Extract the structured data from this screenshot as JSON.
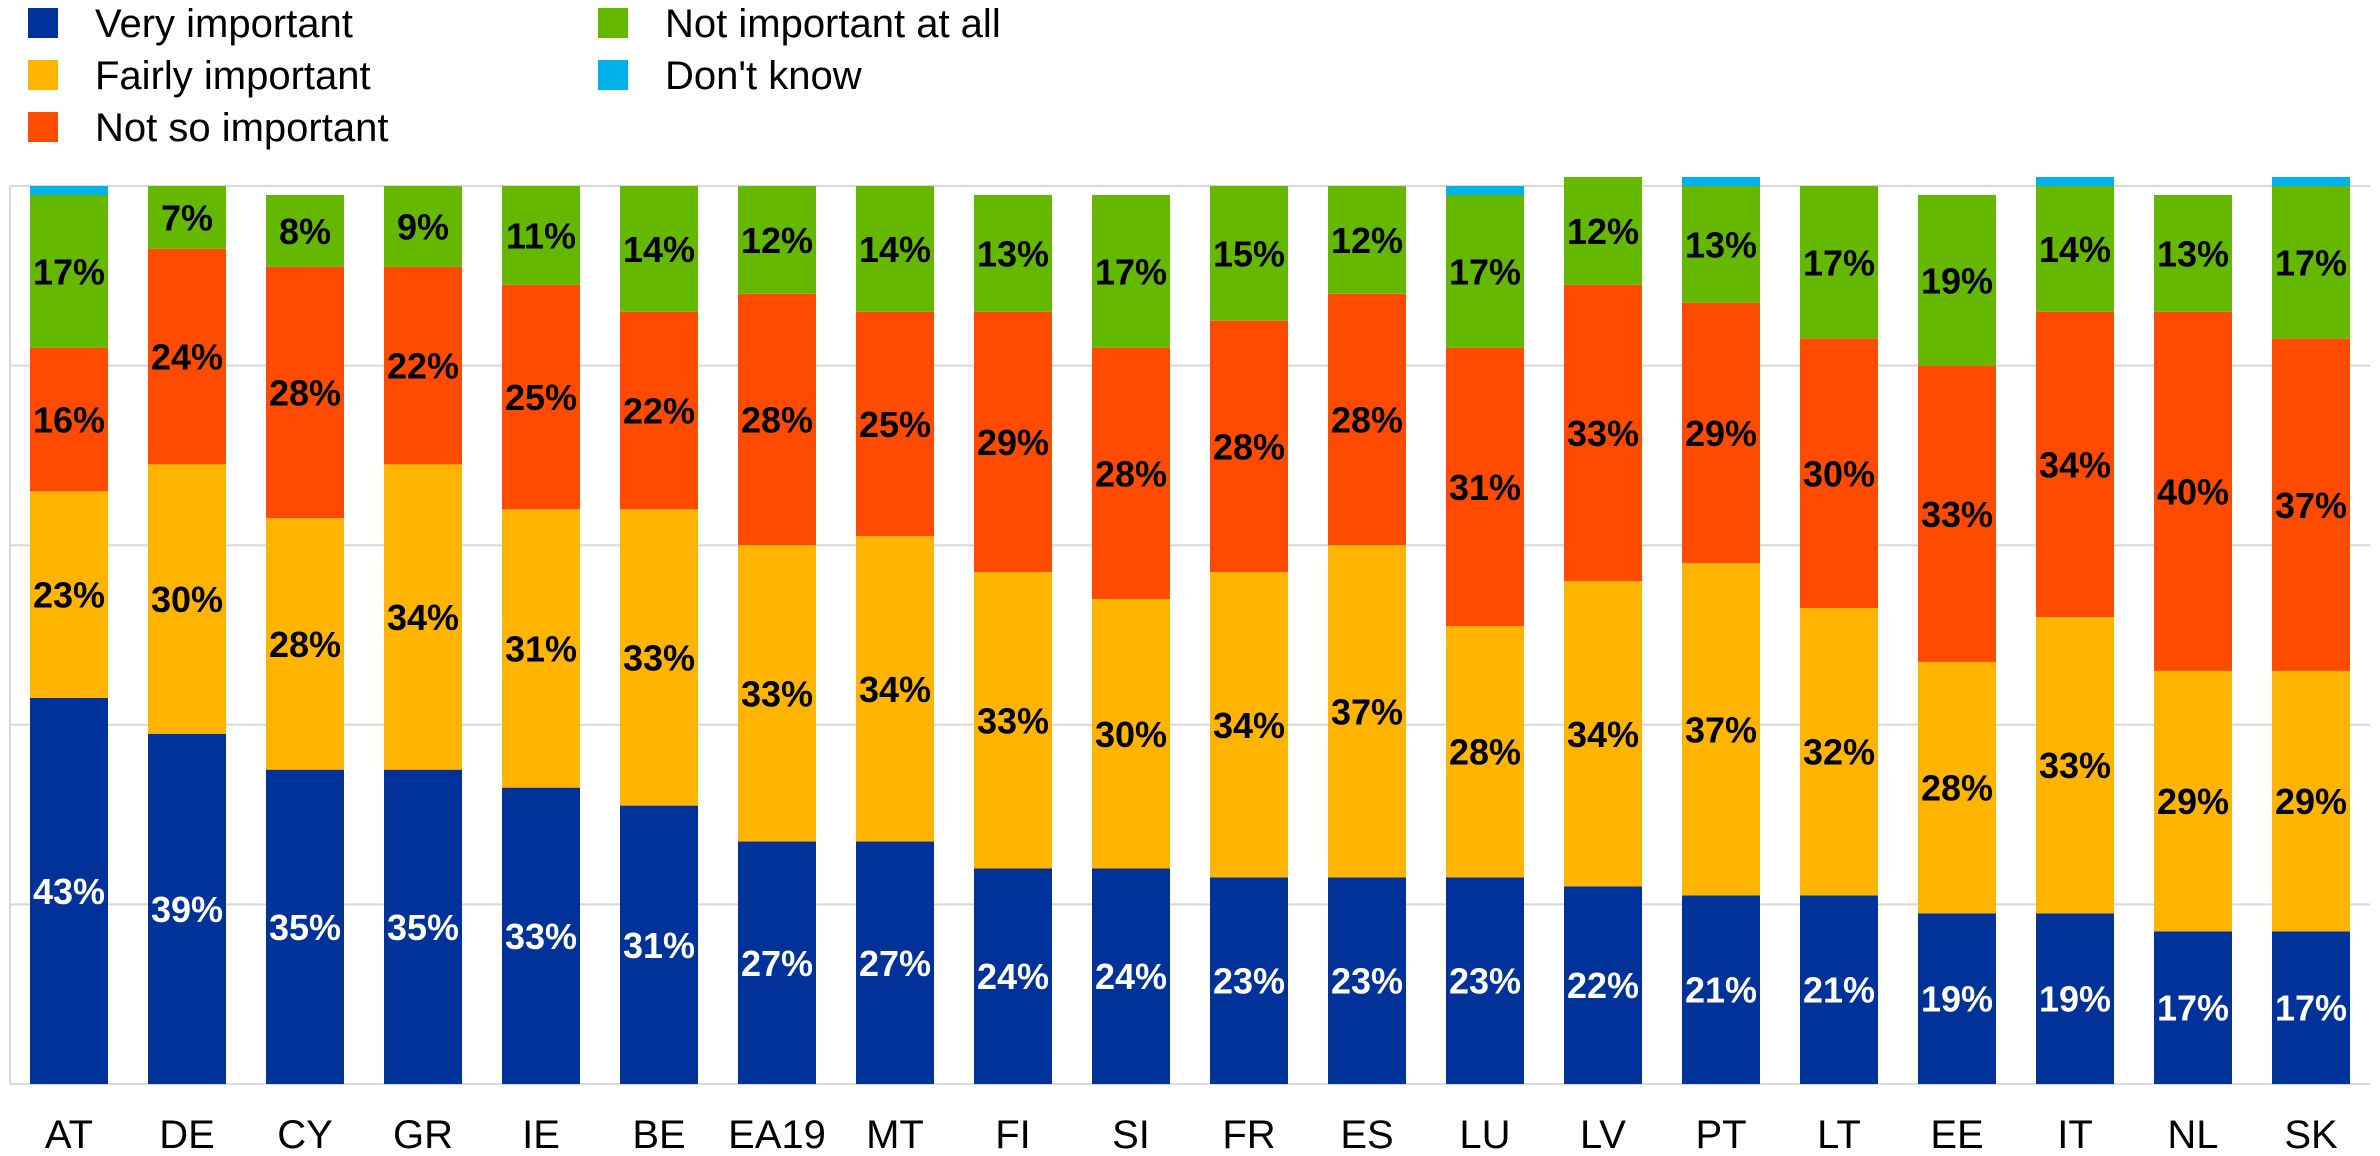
{
  "chart_data": {
    "type": "bar",
    "stacked": true,
    "orientation": "vertical",
    "title": "",
    "xlabel": "",
    "ylabel": "",
    "ylim": [
      0,
      100
    ],
    "y_axis_labels_shown": false,
    "grid": "horizontal",
    "legend_position": "top-left",
    "categories": [
      "AT",
      "DE",
      "CY",
      "GR",
      "IE",
      "BE",
      "EA19",
      "MT",
      "FI",
      "SI",
      "FR",
      "ES",
      "LU",
      "LV",
      "PT",
      "LT",
      "EE",
      "IT",
      "NL",
      "SK"
    ],
    "series": [
      {
        "name": "Very important",
        "color": "#003299",
        "label_color": "#ffffff",
        "values": [
          43,
          39,
          35,
          35,
          33,
          31,
          27,
          27,
          24,
          24,
          23,
          23,
          23,
          22,
          21,
          21,
          19,
          19,
          17,
          17
        ]
      },
      {
        "name": "Fairly important",
        "color": "#ffb400",
        "label_color": "#000000",
        "values": [
          23,
          30,
          28,
          34,
          31,
          33,
          33,
          34,
          33,
          30,
          34,
          37,
          28,
          34,
          37,
          32,
          28,
          33,
          29,
          29
        ]
      },
      {
        "name": "Not so important",
        "color": "#ff4b00",
        "label_color": "#000000",
        "values": [
          16,
          24,
          28,
          22,
          25,
          22,
          28,
          25,
          29,
          28,
          28,
          28,
          31,
          33,
          29,
          30,
          33,
          34,
          40,
          37
        ]
      },
      {
        "name": "Not important at all",
        "color": "#65b800",
        "label_color": "#000000",
        "values": [
          17,
          7,
          8,
          9,
          11,
          14,
          12,
          14,
          13,
          17,
          15,
          12,
          17,
          12,
          13,
          17,
          19,
          14,
          13,
          17
        ]
      },
      {
        "name": "Don't know",
        "color": "#00b1ea",
        "label_color": "#000000",
        "values": [
          1,
          0,
          0,
          0,
          0,
          0,
          0,
          0,
          0,
          0,
          0,
          0,
          1,
          0,
          1,
          0,
          0,
          1,
          0,
          1
        ]
      }
    ],
    "segment_labels": [
      [
        "43%",
        "39%",
        "35%",
        "35%",
        "33%",
        "31%",
        "27%",
        "27%",
        "24%",
        "24%",
        "23%",
        "23%",
        "23%",
        "22%",
        "21%",
        "21%",
        "19%",
        "19%",
        "17%",
        "17%"
      ],
      [
        "23%",
        "30%",
        "28%",
        "34%",
        "31%",
        "33%",
        "33%",
        "34%",
        "33%",
        "30%",
        "34%",
        "37%",
        "28%",
        "34%",
        "37%",
        "32%",
        "28%",
        "33%",
        "29%",
        "29%"
      ],
      [
        "16%",
        "24%",
        "28%",
        "22%",
        "25%",
        "22%",
        "28%",
        "25%",
        "29%",
        "28%",
        "28%",
        "28%",
        "31%",
        "33%",
        "29%",
        "30%",
        "33%",
        "34%",
        "40%",
        "37%"
      ],
      [
        "17%",
        "7%",
        "8%",
        "9%",
        "11%",
        "14%",
        "12%",
        "14%",
        "13%",
        "17%",
        "15%",
        "12%",
        "17%",
        "12%",
        "13%",
        "17%",
        "19%",
        "14%",
        "13%",
        "17%"
      ],
      [
        "",
        "",
        "",
        "",
        "",
        "",
        "",
        "",
        "",
        "",
        "",
        "",
        "",
        "",
        "",
        "",
        "",
        "",
        "",
        ""
      ]
    ]
  }
}
